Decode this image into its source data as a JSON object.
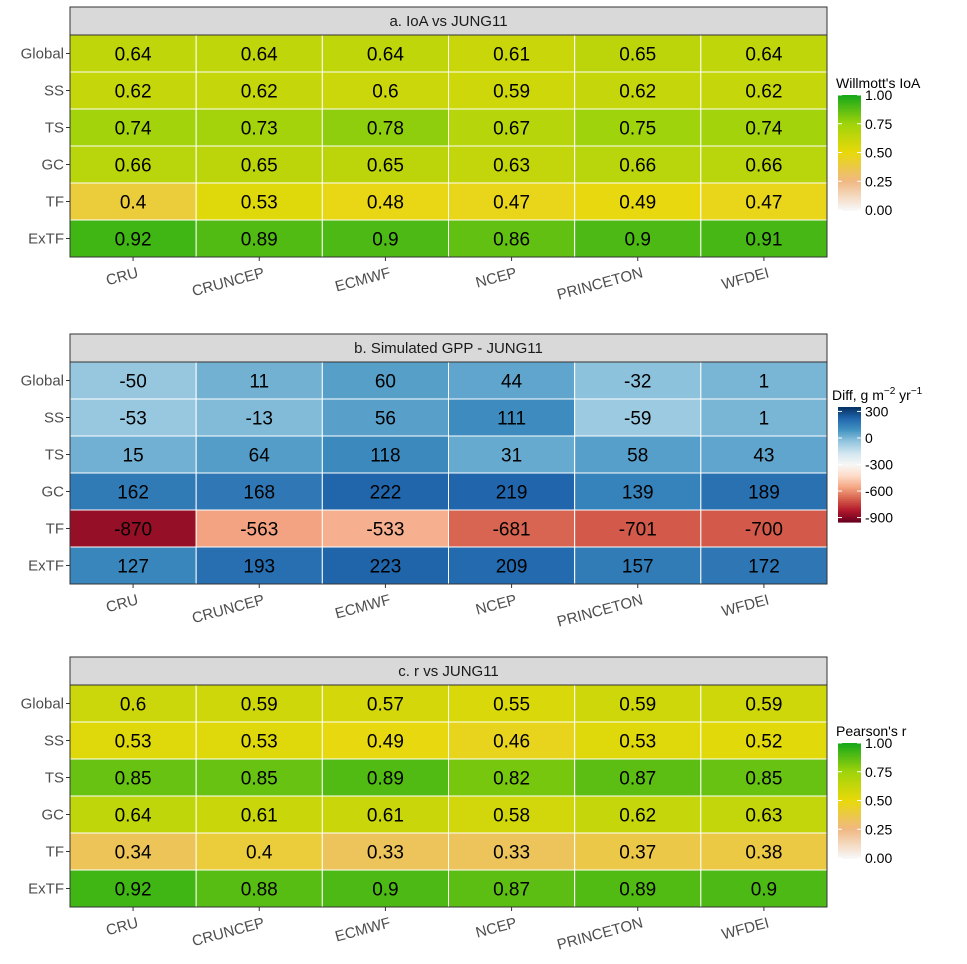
{
  "chart_data": [
    {
      "type": "heatmap",
      "title": "a. IoA vs JUNG11",
      "columns": [
        "CRU",
        "CRUNCEP",
        "ECMWF",
        "NCEP",
        "PRINCETON",
        "WFDEI"
      ],
      "rows": [
        "Global",
        "SS",
        "TS",
        "GC",
        "TF",
        "ExTF"
      ],
      "values": [
        [
          0.64,
          0.64,
          0.64,
          0.61,
          0.65,
          0.64
        ],
        [
          0.62,
          0.62,
          0.6,
          0.59,
          0.62,
          0.62
        ],
        [
          0.74,
          0.73,
          0.78,
          0.67,
          0.75,
          0.74
        ],
        [
          0.66,
          0.65,
          0.65,
          0.63,
          0.66,
          0.66
        ],
        [
          0.4,
          0.53,
          0.48,
          0.47,
          0.49,
          0.47
        ],
        [
          0.92,
          0.89,
          0.9,
          0.86,
          0.9,
          0.91
        ]
      ],
      "legend": {
        "title": "Willmott's IoA",
        "ticks": [
          "1.00",
          "0.75",
          "0.50",
          "0.25",
          "0.00"
        ],
        "range": [
          0,
          1
        ],
        "colors": [
          "#f7f7f7",
          "#f0b883",
          "#e8d90a",
          "#9fd30b",
          "#14a81a"
        ]
      }
    },
    {
      "type": "heatmap",
      "title": "b. Simulated GPP - JUNG11",
      "columns": [
        "CRU",
        "CRUNCEP",
        "ECMWF",
        "NCEP",
        "PRINCETON",
        "WFDEI"
      ],
      "rows": [
        "Global",
        "SS",
        "TS",
        "GC",
        "TF",
        "ExTF"
      ],
      "values": [
        [
          -50,
          11,
          60,
          44,
          -32,
          1
        ],
        [
          -53,
          -13,
          56,
          111,
          -59,
          1
        ],
        [
          15,
          64,
          118,
          31,
          58,
          43
        ],
        [
          162,
          168,
          222,
          219,
          139,
          189
        ],
        [
          -870,
          -563,
          -533,
          -681,
          -701,
          -700
        ],
        [
          127,
          193,
          223,
          209,
          157,
          172
        ]
      ],
      "legend": {
        "title": "Diff, g m",
        "title_exp1": "−2",
        "title_mid": " yr",
        "title_exp2": "−1",
        "ticks": [
          "300",
          "0",
          "-300",
          "-600",
          "-900"
        ],
        "range": [
          -950,
          350
        ],
        "colors": [
          "#67001f",
          "#b2182b",
          "#d6604d",
          "#f4a582",
          "#fddbc7",
          "#f7f7f7",
          "#d1e5f0",
          "#92c5de",
          "#4393c3",
          "#2166ac",
          "#053061"
        ]
      }
    },
    {
      "type": "heatmap",
      "title": "c. r vs JUNG11",
      "columns": [
        "CRU",
        "CRUNCEP",
        "ECMWF",
        "NCEP",
        "PRINCETON",
        "WFDEI"
      ],
      "rows": [
        "Global",
        "SS",
        "TS",
        "GC",
        "TF",
        "ExTF"
      ],
      "values": [
        [
          0.6,
          0.59,
          0.57,
          0.55,
          0.59,
          0.59
        ],
        [
          0.53,
          0.53,
          0.49,
          0.46,
          0.53,
          0.52
        ],
        [
          0.85,
          0.85,
          0.89,
          0.82,
          0.87,
          0.85
        ],
        [
          0.64,
          0.61,
          0.61,
          0.58,
          0.62,
          0.63
        ],
        [
          0.34,
          0.4,
          0.33,
          0.33,
          0.37,
          0.38
        ],
        [
          0.92,
          0.88,
          0.9,
          0.87,
          0.89,
          0.9
        ]
      ],
      "legend": {
        "title": "Pearson's  r",
        "ticks": [
          "1.00",
          "0.75",
          "0.50",
          "0.25",
          "0.00"
        ],
        "range": [
          0,
          1
        ],
        "colors": [
          "#f7f7f7",
          "#f0b883",
          "#e8d90a",
          "#9fd30b",
          "#14a81a"
        ]
      }
    }
  ]
}
